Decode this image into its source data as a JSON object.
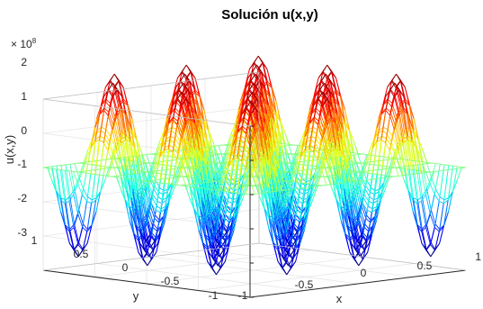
{
  "chart_data": {
    "type": "surface-mesh",
    "title": "Solución u(x,y)",
    "xlabel": "x",
    "ylabel": "y",
    "zlabel": "u(x,y)",
    "exponent_label": "× 10",
    "exponent_power": "8",
    "colormap": "jet",
    "grid": true,
    "box": true,
    "xlim": [
      -1,
      1
    ],
    "ylim": [
      -1,
      1
    ],
    "zlim": [
      -3,
      2
    ],
    "x_ticks": [
      "-1",
      "-0.5",
      "0",
      "0.5",
      "1"
    ],
    "y_ticks": [
      "-1",
      "-0.5",
      "0",
      "0.5",
      "1"
    ],
    "z_ticks": [
      "-3",
      "-2",
      "-1",
      "0",
      "1",
      "2"
    ],
    "scale_factor": 100000000,
    "surface_function": "u = 2.6e8 * sin(3*pi*x) * sin(3*pi*y)",
    "amplitude": 2.6
  }
}
